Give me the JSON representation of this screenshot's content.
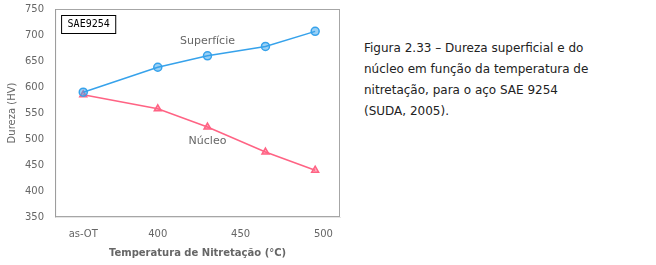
{
  "chart_data": {
    "type": "line",
    "xlabel": "Temperatura de Nitretação (°C)",
    "ylabel": "Dureza (HV)",
    "x": [
      355,
      400,
      430,
      465,
      495
    ],
    "series": [
      {
        "name": "Superfície",
        "values": [
          590,
          638,
          660,
          678,
          707
        ],
        "marker": "circle"
      },
      {
        "name": "Núcleo",
        "values": [
          585,
          558,
          523,
          475,
          440
        ],
        "marker": "triangle"
      }
    ],
    "xlim": [
      338,
      510
    ],
    "xticks": [
      {
        "value": 355,
        "label": "as-OT"
      },
      400,
      450,
      500
    ],
    "ylim": [
      350,
      750
    ],
    "yticks": [
      350,
      400,
      450,
      500,
      550,
      600,
      650,
      700,
      750
    ],
    "grid": false,
    "annotations": [
      "SAE9254"
    ],
    "caption": [
      "Figura 2.33 – Dureza superficial e do",
      "núcleo em função da temperatura de",
      "nitretação, para o aço SAE 9254",
      "(SUDA, 2005)."
    ]
  }
}
